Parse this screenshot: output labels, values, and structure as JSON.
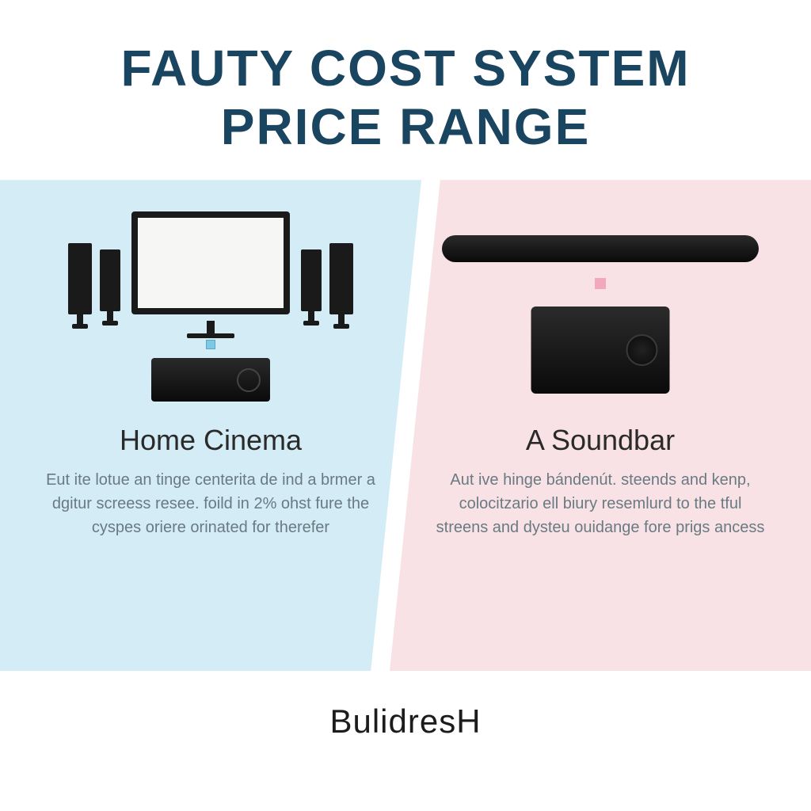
{
  "title_line1": "FAUTY COST SYSTEM",
  "title_line2": "PRICE RANGE",
  "title_color": "#1a4560",
  "left": {
    "bg": "#d3ecf5",
    "heading": "Home Cinema",
    "heading_color": "#2a2a2a",
    "body": "Eut ite lotue an tinge centerita de ind a brmer a dgitur screess resee. foild in 2% ohst fure the cyspes oriere orinated for therefer",
    "body_color": "#6a7a82"
  },
  "right": {
    "bg": "#f8e2e6",
    "heading": "A Soundbar",
    "heading_color": "#2a2a2a",
    "body": "Aut ive hinge bándenút. steends and kenp, colocitzario ell biury resemlurd to the tful streens and dysteu ouidange fore prigs ancess",
    "body_color": "#6a7a82"
  },
  "footer": "BulidresH",
  "footer_color": "#1c1c1c"
}
